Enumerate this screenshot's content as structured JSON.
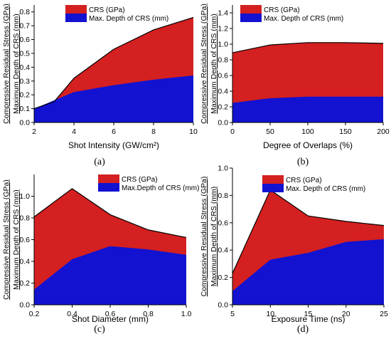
{
  "colors": {
    "crs": "#d42020",
    "depth": "#1212d0",
    "outline": "#000000"
  },
  "chart_data": [
    {
      "type": "area",
      "panel_label": "(a)",
      "xlabel": "Shot Intensity (GW/cm²)",
      "ylabel_line1": "Compressive Residual Stress (GPa)",
      "ylabel_line2": "Maximum Depth of CRS (mm)",
      "xlim": [
        2,
        10
      ],
      "ylim": [
        0,
        0.85
      ],
      "xticks": [
        "2",
        "4",
        "6",
        "8",
        "10"
      ],
      "yticks": [
        "0.0",
        "0.1",
        "0.2",
        "0.3",
        "0.4",
        "0.5",
        "0.6",
        "0.7",
        "0.8"
      ],
      "x": [
        2,
        3,
        4,
        6,
        8,
        10
      ],
      "series": [
        {
          "name": "CRS (GPa)",
          "values": [
            0.1,
            0.15,
            0.32,
            0.53,
            0.67,
            0.76
          ]
        },
        {
          "name": "Max. Depth of CRS (mm)",
          "values": [
            0.1,
            0.16,
            0.22,
            0.27,
            0.31,
            0.34
          ]
        }
      ],
      "legend": "top-left"
    },
    {
      "type": "area",
      "panel_label": "(b)",
      "xlabel": "Degree of Overlaps (%)",
      "ylabel_line1": "Compressive Residual Stress (GPa)",
      "ylabel_line2": "Maximum Depth of CRS (mm)",
      "xlim": [
        0,
        200
      ],
      "ylim": [
        0,
        1.5
      ],
      "xticks": [
        "0",
        "50",
        "100",
        "150",
        "200"
      ],
      "yticks": [
        "0.0",
        "0.2",
        "0.4",
        "0.6",
        "0.8",
        "1.0",
        "1.2",
        "1.4"
      ],
      "x": [
        0,
        50,
        100,
        150,
        200
      ],
      "series": [
        {
          "name": "CRS (GPa)",
          "values": [
            0.89,
            0.99,
            1.02,
            1.02,
            1.01
          ]
        },
        {
          "name": "Max. Depth of CRS (mm)",
          "values": [
            0.25,
            0.31,
            0.33,
            0.33,
            0.33
          ]
        }
      ],
      "legend": "top-left"
    },
    {
      "type": "area",
      "panel_label": "(c)",
      "xlabel": "Shot Diameter (mm)",
      "ylabel_line1": "Compressive Residual Stress (GPa)",
      "ylabel_line2": "Maximum Depth of CRS (mm)",
      "xlim": [
        0.2,
        1.0
      ],
      "ylim": [
        0,
        1.2
      ],
      "xticks": [
        "0.2",
        "0.4",
        "0.6",
        "0.8",
        "1.0"
      ],
      "yticks": [
        "0.0",
        "0.2",
        "0.4",
        "0.6",
        "0.8",
        "1.0"
      ],
      "x": [
        0.2,
        0.4,
        0.6,
        0.8,
        1.0
      ],
      "series": [
        {
          "name": "CRS (GPa)",
          "values": [
            0.81,
            1.07,
            0.83,
            0.69,
            0.62
          ]
        },
        {
          "name": "Max.Depth of CRS (mm)",
          "values": [
            0.14,
            0.42,
            0.54,
            0.51,
            0.46
          ]
        }
      ],
      "legend": "top-right"
    },
    {
      "type": "area",
      "panel_label": "(d)",
      "xlabel": "Exposure Time (ns)",
      "ylabel_line1": "Compressive Residual Stress (GPa)",
      "ylabel_line2": "Maximum Depth of CRS (mm)",
      "xlim": [
        5,
        25
      ],
      "ylim": [
        0,
        1.0
      ],
      "xticks": [
        "5",
        "10",
        "15",
        "20",
        "25"
      ],
      "yticks": [
        "0.0",
        "0.2",
        "0.4",
        "0.6",
        "0.8",
        "1.0"
      ],
      "x": [
        5,
        10,
        15,
        20,
        25
      ],
      "series": [
        {
          "name": "CRS (GPa)",
          "values": [
            0.23,
            0.84,
            0.65,
            0.61,
            0.58
          ]
        },
        {
          "name": "Max. Depth of CRS (mm)",
          "values": [
            0.1,
            0.33,
            0.38,
            0.46,
            0.48
          ]
        }
      ],
      "legend": "top-right"
    }
  ]
}
